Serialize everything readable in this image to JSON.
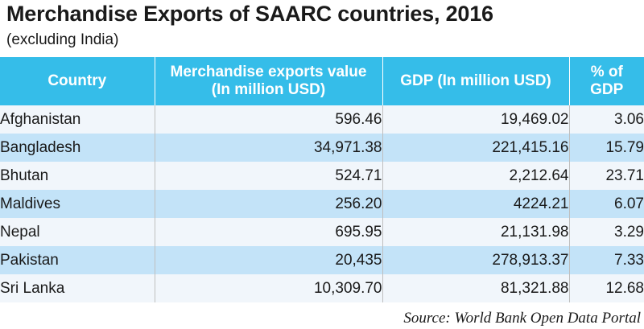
{
  "chart_data": {
    "type": "table",
    "title": "Merchandise Exports of SAARC countries, 2016",
    "subtitle": "(excluding India)",
    "columns": [
      "Country",
      "Merchandise exports value (In million USD)",
      "GDP (In million USD)",
      "% of GDP"
    ],
    "rows": [
      {
        "country": "Afghanistan",
        "exports": "596.46",
        "gdp": "19,469.02",
        "pct": "3.06"
      },
      {
        "country": "Bangladesh",
        "exports": "34,971.38",
        "gdp": "221,415.16",
        "pct": "15.79"
      },
      {
        "country": "Bhutan",
        "exports": "524.71",
        "gdp": "2,212.64",
        "pct": "23.71"
      },
      {
        "country": "Maldives",
        "exports": "256.20",
        "gdp": "4224.21",
        "pct": "6.07"
      },
      {
        "country": "Nepal",
        "exports": "695.95",
        "gdp": "21,131.98",
        "pct": "3.29"
      },
      {
        "country": "Pakistan",
        "exports": "20,435",
        "gdp": "278,913.37",
        "pct": "7.33"
      },
      {
        "country": "Sri Lanka",
        "exports": "10,309.70",
        "gdp": "81,321.88",
        "pct": "12.68"
      }
    ],
    "source": "Source: World Bank Open Data Portal"
  },
  "colors": {
    "header_background": "#35bde9",
    "row_light": "#f1f6fb",
    "row_dark": "#c3e3f8"
  }
}
